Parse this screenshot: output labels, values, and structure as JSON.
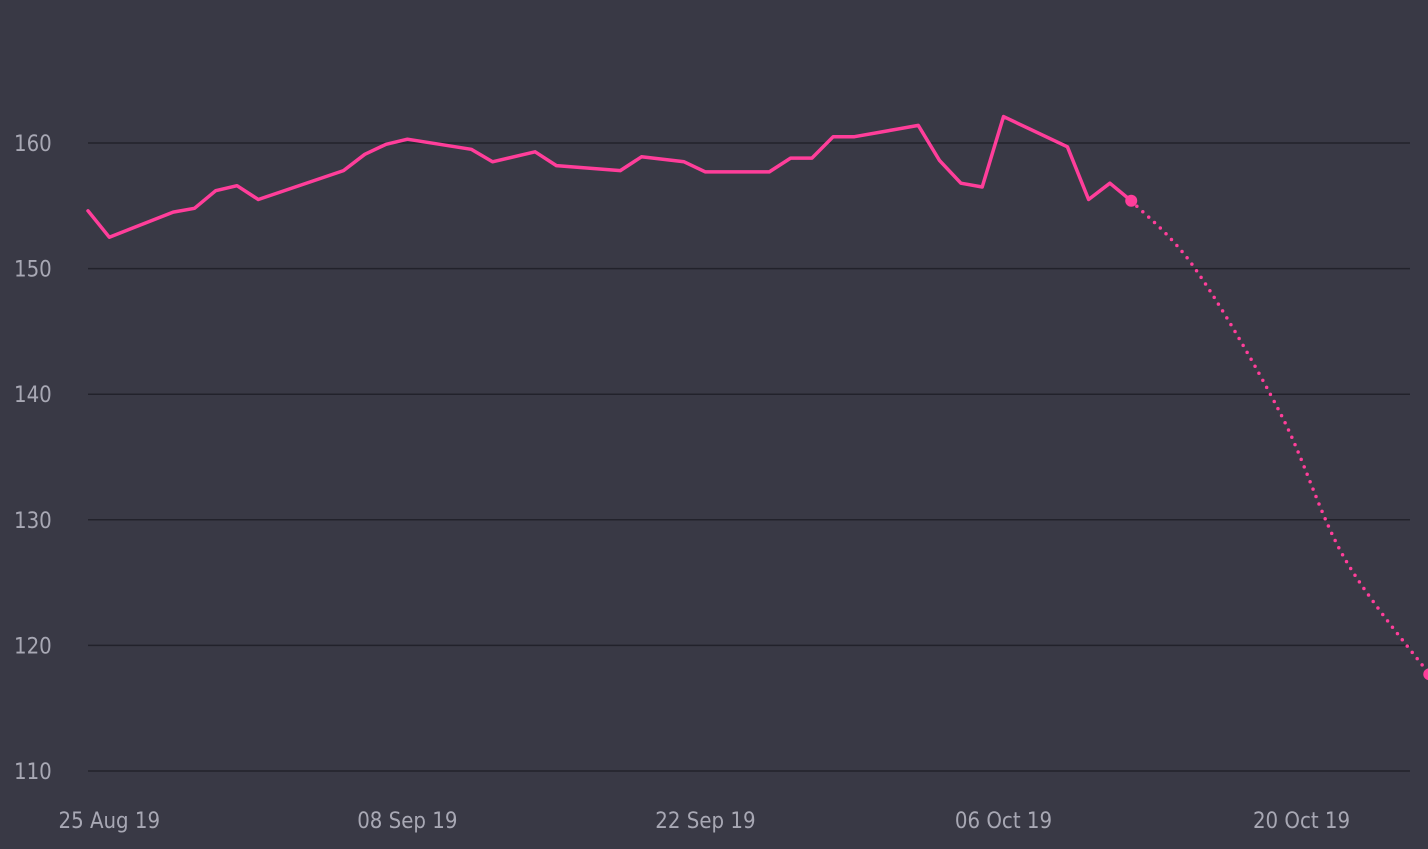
{
  "colors": {
    "background": "#393945",
    "grid": "#22222b",
    "text": "#a8a8b4",
    "series": "#ff3e9a"
  },
  "chart_data": {
    "type": "line",
    "title": "",
    "xlabel": "",
    "ylabel": "",
    "ylim": [
      110,
      165
    ],
    "xlim": [
      "2019-08-24",
      "2019-10-23"
    ],
    "grid": true,
    "y_ticks": [
      {
        "value": 110,
        "label": "110"
      },
      {
        "value": 120,
        "label": "120"
      },
      {
        "value": 130,
        "label": "130"
      },
      {
        "value": 140,
        "label": "140"
      },
      {
        "value": 150,
        "label": "150"
      },
      {
        "value": 160,
        "label": "160"
      }
    ],
    "x_ticks": [
      {
        "value": "2019-08-25",
        "label": "25 Aug 19"
      },
      {
        "value": "2019-09-08",
        "label": "08 Sep 19"
      },
      {
        "value": "2019-09-22",
        "label": "22 Sep 19"
      },
      {
        "value": "2019-10-06",
        "label": "06 Oct 19"
      },
      {
        "value": "2019-10-20",
        "label": "20 Oct 19"
      }
    ],
    "series": [
      {
        "style": "solid",
        "points": [
          {
            "x": "2019-08-24",
            "y": 154.6
          },
          {
            "x": "2019-08-25",
            "y": 152.5
          },
          {
            "x": "2019-08-28",
            "y": 154.5
          },
          {
            "x": "2019-08-29",
            "y": 154.8
          },
          {
            "x": "2019-08-30",
            "y": 156.2
          },
          {
            "x": "2019-08-31",
            "y": 156.6
          },
          {
            "x": "2019-09-01",
            "y": 155.5
          },
          {
            "x": "2019-09-05",
            "y": 157.8
          },
          {
            "x": "2019-09-06",
            "y": 159.1
          },
          {
            "x": "2019-09-07",
            "y": 159.9
          },
          {
            "x": "2019-09-08",
            "y": 160.3
          },
          {
            "x": "2019-09-11",
            "y": 159.5
          },
          {
            "x": "2019-09-12",
            "y": 158.5
          },
          {
            "x": "2019-09-14",
            "y": 159.3
          },
          {
            "x": "2019-09-15",
            "y": 158.2
          },
          {
            "x": "2019-09-18",
            "y": 157.8
          },
          {
            "x": "2019-09-19",
            "y": 158.9
          },
          {
            "x": "2019-09-21",
            "y": 158.5
          },
          {
            "x": "2019-09-22",
            "y": 157.7
          },
          {
            "x": "2019-09-25",
            "y": 157.7
          },
          {
            "x": "2019-09-26",
            "y": 158.8
          },
          {
            "x": "2019-09-27",
            "y": 158.8
          },
          {
            "x": "2019-09-28",
            "y": 160.5
          },
          {
            "x": "2019-09-29",
            "y": 160.5
          },
          {
            "x": "2019-10-02",
            "y": 161.4
          },
          {
            "x": "2019-10-03",
            "y": 158.6
          },
          {
            "x": "2019-10-04",
            "y": 156.8
          },
          {
            "x": "2019-10-05",
            "y": 156.5
          },
          {
            "x": "2019-10-06",
            "y": 162.1
          },
          {
            "x": "2019-10-09",
            "y": 159.7
          },
          {
            "x": "2019-10-10",
            "y": 155.5
          },
          {
            "x": "2019-10-11",
            "y": 156.8
          },
          {
            "x": "2019-10-12",
            "y": 155.4
          }
        ]
      },
      {
        "style": "dotted",
        "points": [
          {
            "x": "2019-10-12",
            "y": 155.4
          },
          {
            "x": "2019-10-15",
            "y": 150.0
          },
          {
            "x": "2019-10-19",
            "y": 138.5
          },
          {
            "x": "2019-10-22",
            "y": 127.0
          },
          {
            "x": "2019-10-26",
            "y": 117.7
          }
        ],
        "markers": [
          {
            "x": "2019-10-12",
            "y": 155.4
          },
          {
            "x": "2019-10-26",
            "y": 117.7
          }
        ]
      }
    ]
  }
}
